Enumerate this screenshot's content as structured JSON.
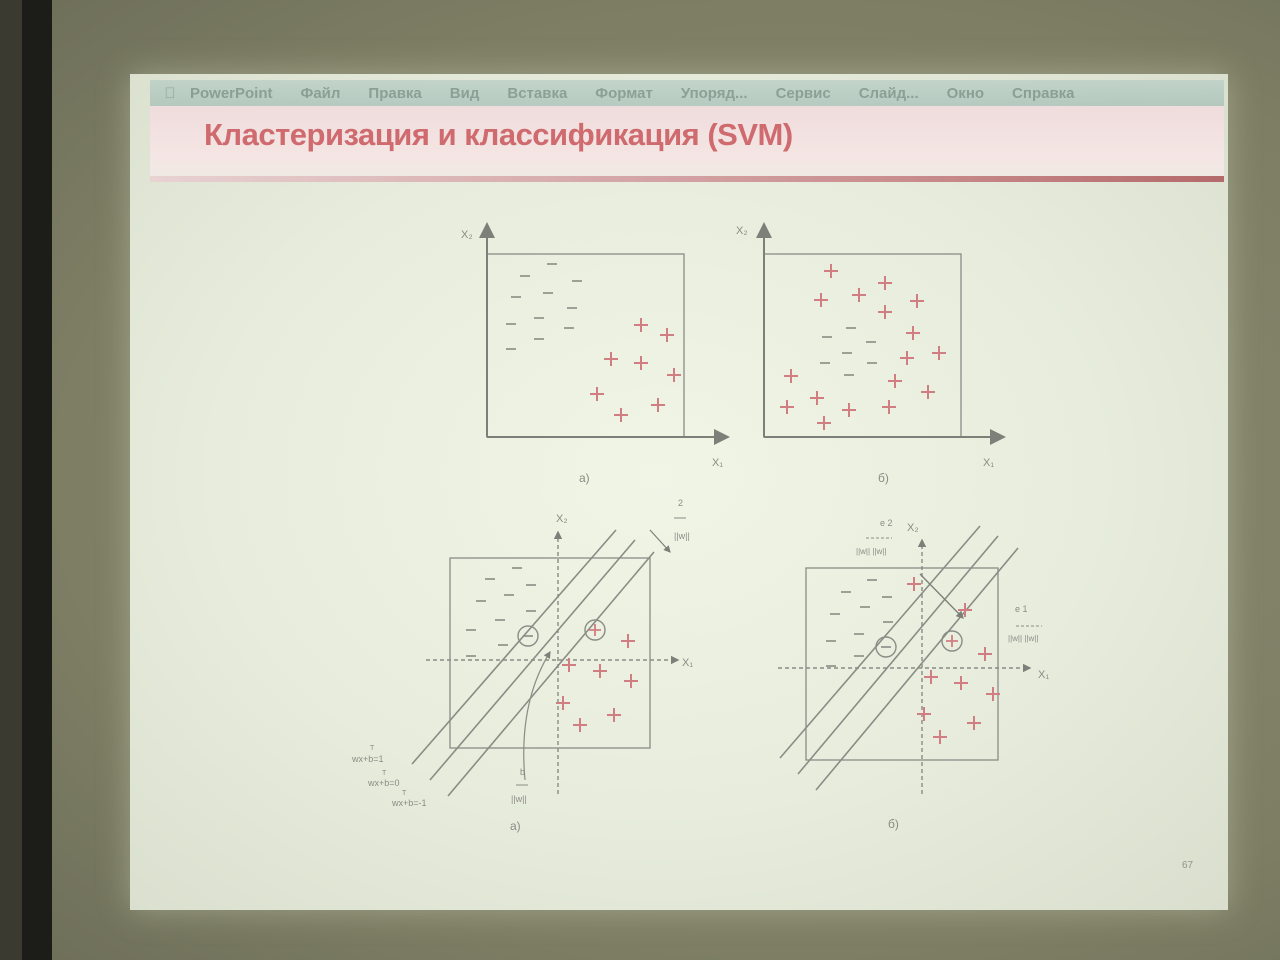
{
  "menubar": {
    "apple_icon": "apple-icon",
    "items": [
      "PowerPoint",
      "Файл",
      "Правка",
      "Вид",
      "Вставка",
      "Формат",
      "Упоряд...",
      "Сервис",
      "Слайд...",
      "Окно",
      "Справка"
    ]
  },
  "slide": {
    "title": "Кластеризация и классификация (SVM)",
    "page_number": "67"
  },
  "figures": {
    "top_left": {
      "xlabel": "X₁",
      "ylabel": "X₂",
      "caption": "а)"
    },
    "top_right": {
      "xlabel": "X₁",
      "ylabel": "X₂",
      "caption": "б)"
    },
    "bottom_left": {
      "xlabel": "X₁",
      "ylabel": "X₂",
      "caption": "а)",
      "margin_label_top": "2",
      "margin_label_bottom": "||w||",
      "eq_pos": "wx+b=1",
      "eq_zero": "wx+b=0",
      "eq_neg": "wx+b=-1",
      "eq_sup": "T",
      "bias_label_top": "b",
      "bias_label_bottom": "||w||"
    },
    "bottom_right": {
      "xlabel": "X₁",
      "ylabel": "X₂",
      "caption": "б)",
      "label_left_top": "e  2",
      "label_left_bottom": "||w|| ||w||",
      "label_right_top": "e  1",
      "label_right_bottom": "||w|| ||w||"
    }
  },
  "colors": {
    "axis": "#7d7f79",
    "marker": "#d07e82",
    "title": "#cf6a6e"
  }
}
